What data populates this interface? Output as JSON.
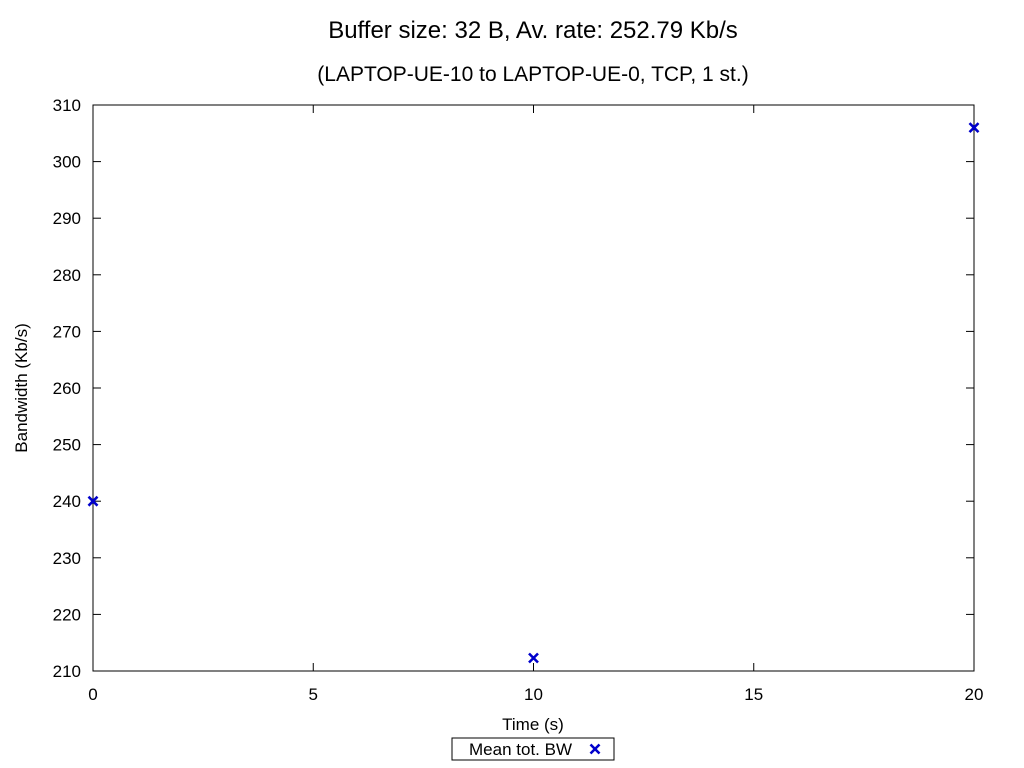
{
  "chart_data": {
    "type": "scatter",
    "title": "Buffer size: 32 B, Av. rate: 252.79 Kb/s",
    "subtitle": "(LAPTOP-UE-10 to LAPTOP-UE-0, TCP, 1 st.)",
    "xlabel": "Time (s)",
    "ylabel": "Bandwidth (Kb/s)",
    "xlim": [
      0,
      20
    ],
    "ylim": [
      210,
      310
    ],
    "xticks": [
      0,
      5,
      10,
      15,
      20
    ],
    "yticks": [
      210,
      220,
      230,
      240,
      250,
      260,
      270,
      280,
      290,
      300,
      310
    ],
    "grid": false,
    "legend_position": "bottom-center",
    "series": [
      {
        "name": "Mean tot. BW",
        "marker": "x",
        "color": "#0000cc",
        "x": [
          0,
          10,
          20
        ],
        "y": [
          240,
          212.3,
          306
        ]
      }
    ]
  }
}
